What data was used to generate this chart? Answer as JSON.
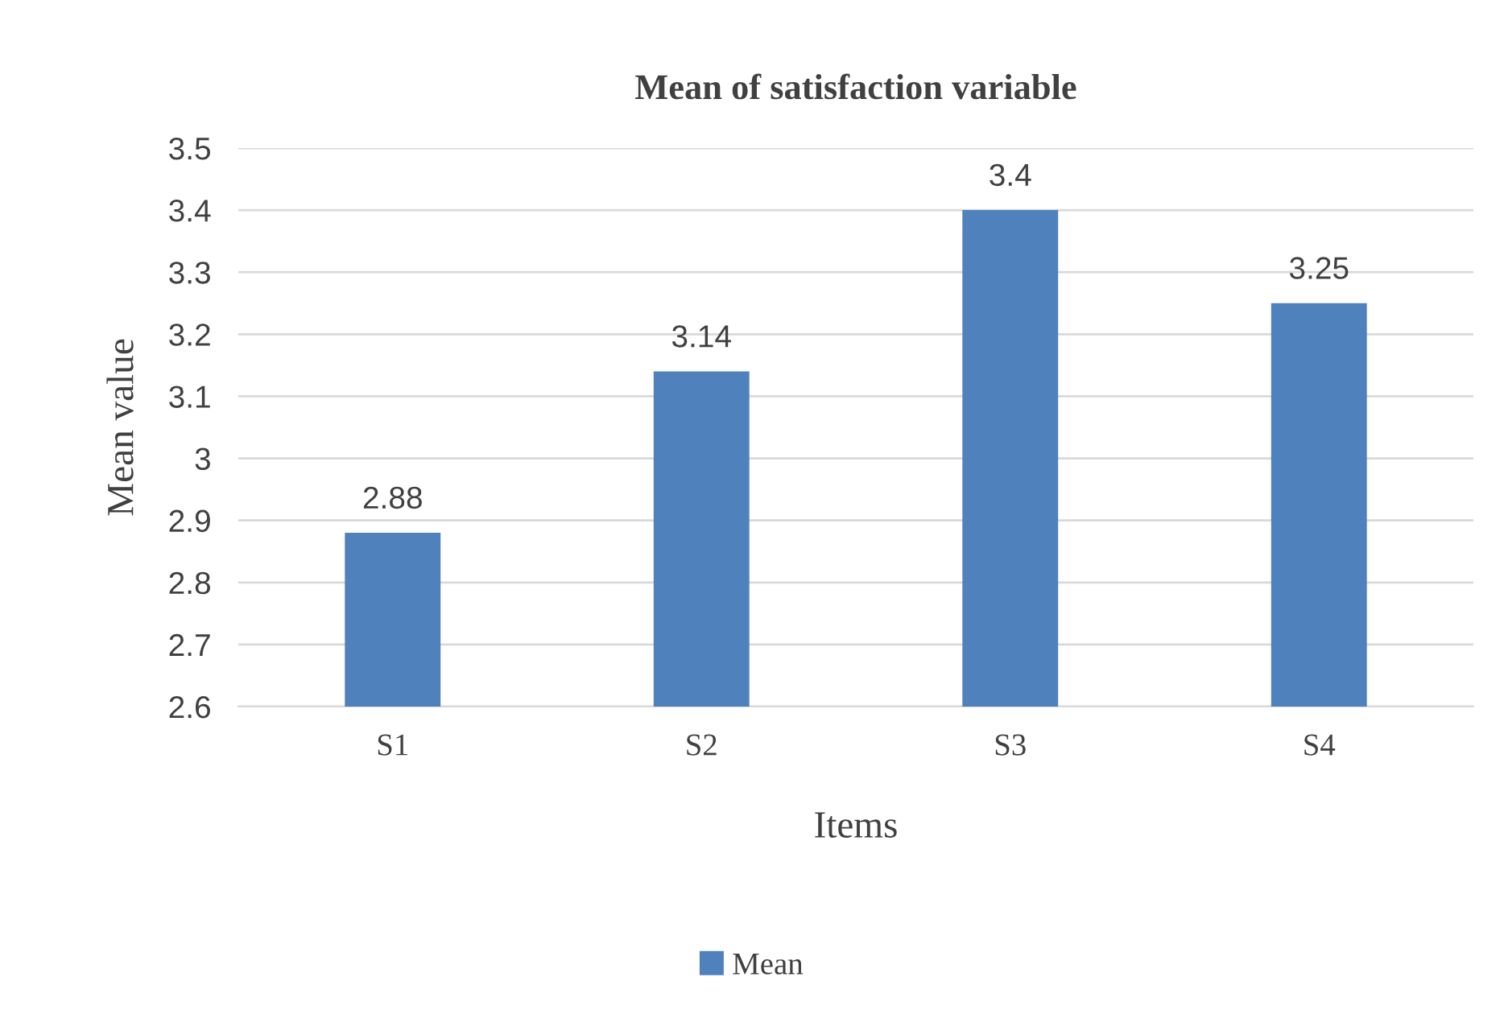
{
  "chart_data": {
    "type": "bar",
    "title": "Mean of satisfaction variable",
    "xlabel": "Items",
    "ylabel": "Mean value",
    "categories": [
      "S1",
      "S2",
      "S3",
      "S4"
    ],
    "series": [
      {
        "name": "Mean",
        "color": "#4f81bd",
        "values": [
          2.88,
          3.14,
          3.4,
          3.25
        ]
      }
    ],
    "ylim": [
      2.6,
      3.5
    ],
    "yticks": [
      2.6,
      2.7,
      2.8,
      2.9,
      3,
      3.1,
      3.2,
      3.3,
      3.4,
      3.5
    ],
    "grid": "y",
    "legend": "bottom",
    "data_labels": true
  }
}
